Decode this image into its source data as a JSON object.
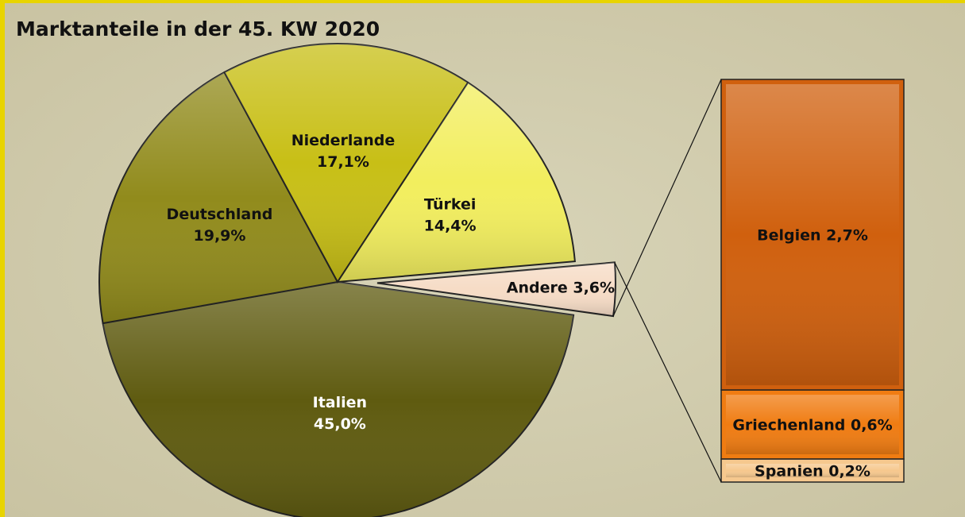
{
  "chart_data": [
    {
      "type": "pie",
      "title": "Marktanteile in der 45. KW 2020",
      "categories": [
        "Italien",
        "Deutschland",
        "Niederlande",
        "Türkei",
        "Andere"
      ],
      "values": [
        45.0,
        19.9,
        17.1,
        14.4,
        3.6
      ],
      "value_labels": [
        "45,0%",
        "19,9%",
        "17,1%",
        "14,4%",
        "3,6%"
      ],
      "colors": [
        "#5f5b10",
        "#918b1c",
        "#c8bf16",
        "#f2ee5e",
        "#f6dcc6"
      ]
    },
    {
      "type": "bar",
      "categories": [
        "Belgien",
        "Griechenland",
        "Spanien"
      ],
      "values": [
        2.7,
        0.6,
        0.2
      ],
      "value_labels": [
        "2,7%",
        "0,6%",
        "0,2%"
      ],
      "colors": [
        "#d0600e",
        "#f07c12",
        "#f6c88e"
      ]
    }
  ]
}
